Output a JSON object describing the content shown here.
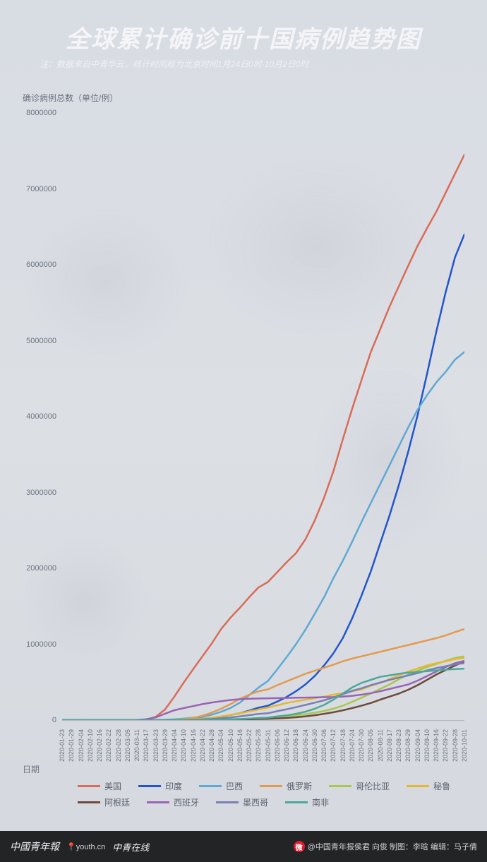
{
  "title": "全球累计确诊前十国病例趋势图",
  "subtitle": "注：数据来自中青华云，统计时间段为北京时间1月24日0时-10月2日0时",
  "ylabel": "确诊病例总数（单位/例）",
  "xlabel": "日期",
  "chart": {
    "type": "line",
    "ylim": [
      0,
      8000000
    ],
    "ytick_step": 1000000,
    "yticks": [
      "0",
      "1000000",
      "2000000",
      "3000000",
      "4000000",
      "5000000",
      "6000000",
      "7000000",
      "8000000"
    ],
    "xticks": [
      "2020-01-23",
      "2020-01-29",
      "2020-02-04",
      "2020-02-10",
      "2020-02-16",
      "2020-02-22",
      "2020-02-28",
      "2020-03-05",
      "2020-03-11",
      "2020-03-17",
      "2020-03-23",
      "2020-03-29",
      "2020-04-04",
      "2020-04-10",
      "2020-04-16",
      "2020-04-22",
      "2020-04-28",
      "2020-05-04",
      "2020-05-10",
      "2020-05-16",
      "2020-05-22",
      "2020-05-28",
      "2020-05-31",
      "2020-06-06",
      "2020-06-12",
      "2020-06-18",
      "2020-06-24",
      "2020-06-30",
      "2020-07-06",
      "2020-07-12",
      "2020-07-18",
      "2020-07-24",
      "2020-07-30",
      "2020-08-05",
      "2020-08-11",
      "2020-08-17",
      "2020-08-23",
      "2020-08-29",
      "2020-09-04",
      "2020-09-10",
      "2020-09-16",
      "2020-09-22",
      "2020-09-28",
      "2020-10-01"
    ],
    "line_width": 2.5,
    "background_color": "#d9dde3",
    "text_color": "#6b7280",
    "title_color": "#f5f5f7",
    "title_fontsize": 34,
    "series": [
      {
        "name": "美国",
        "color": "#d96b57",
        "values": [
          0,
          5,
          11,
          12,
          15,
          35,
          62,
          159,
          1100,
          6300,
          43500,
          140000,
          310000,
          495000,
          670000,
          840000,
          1010000,
          1200000,
          1350000,
          1480000,
          1620000,
          1750000,
          1820000,
          1950000,
          2080000,
          2200000,
          2380000,
          2630000,
          2930000,
          3280000,
          3700000,
          4100000,
          4480000,
          4850000,
          5150000,
          5450000,
          5720000,
          5990000,
          6250000,
          6480000,
          6700000,
          6950000,
          7200000,
          7450000
        ]
      },
      {
        "name": "印度",
        "color": "#2255cc",
        "values": [
          0,
          0,
          1,
          3,
          3,
          3,
          3,
          31,
          62,
          137,
          500,
          1000,
          3000,
          7500,
          13000,
          21000,
          31000,
          46000,
          67000,
          90000,
          125000,
          165000,
          190000,
          245000,
          305000,
          380000,
          470000,
          580000,
          720000,
          880000,
          1080000,
          1340000,
          1640000,
          1960000,
          2330000,
          2700000,
          3100000,
          3540000,
          4020000,
          4560000,
          5120000,
          5640000,
          6100000,
          6400000
        ]
      },
      {
        "name": "巴西",
        "color": "#5fa8d3",
        "values": [
          0,
          0,
          0,
          0,
          0,
          0,
          1,
          8,
          52,
          290,
          1900,
          4300,
          10300,
          20000,
          32000,
          46000,
          72000,
          110000,
          160000,
          230000,
          330000,
          430000,
          515000,
          670000,
          830000,
          1000000,
          1190000,
          1400000,
          1620000,
          1870000,
          2100000,
          2350000,
          2610000,
          2860000,
          3110000,
          3360000,
          3610000,
          3860000,
          4090000,
          4280000,
          4450000,
          4590000,
          4750000,
          4850000
        ]
      },
      {
        "name": "俄罗斯",
        "color": "#e39a4e",
        "values": [
          0,
          0,
          2,
          2,
          2,
          2,
          2,
          4,
          20,
          114,
          438,
          1800,
          4700,
          12000,
          28000,
          58000,
          99000,
          150000,
          210000,
          280000,
          335000,
          380000,
          405000,
          460000,
          510000,
          560000,
          610000,
          650000,
          690000,
          730000,
          775000,
          810000,
          840000,
          870000,
          900000,
          930000,
          960000,
          990000,
          1020000,
          1050000,
          1080000,
          1115000,
          1160000,
          1200000
        ]
      },
      {
        "name": "哥伦比亚",
        "color": "#a8c84e",
        "values": [
          0,
          0,
          0,
          0,
          0,
          0,
          0,
          0,
          0,
          57,
          235,
          700,
          1400,
          2500,
          3200,
          4300,
          5900,
          7900,
          11000,
          15000,
          19000,
          25000,
          29000,
          40000,
          48000,
          60000,
          77000,
          98000,
          120000,
          150000,
          190000,
          240000,
          295000,
          350000,
          410000,
          470000,
          540000,
          600000,
          650000,
          700000,
          740000,
          780000,
          820000,
          840000
        ]
      },
      {
        "name": "秘鲁",
        "color": "#e6b82e",
        "values": [
          0,
          0,
          0,
          0,
          0,
          0,
          0,
          0,
          15,
          117,
          395,
          950,
          1700,
          6800,
          12500,
          20000,
          31000,
          47000,
          68000,
          88000,
          115000,
          140000,
          165000,
          195000,
          225000,
          248000,
          268000,
          288000,
          310000,
          335000,
          355000,
          380000,
          405000,
          450000,
          490000,
          540000,
          590000,
          640000,
          680000,
          720000,
          750000,
          775000,
          805000,
          820000
        ]
      },
      {
        "name": "阿根廷",
        "color": "#6d4a3a",
        "values": [
          0,
          0,
          0,
          0,
          0,
          0,
          0,
          1,
          19,
          79,
          266,
          745,
          1300,
          1900,
          2600,
          3200,
          4000,
          4900,
          6000,
          7800,
          10000,
          14000,
          16800,
          22000,
          28000,
          37000,
          49000,
          64000,
          83000,
          103000,
          128000,
          158000,
          190000,
          225000,
          270000,
          310000,
          350000,
          400000,
          460000,
          530000,
          600000,
          660000,
          720000,
          770000
        ]
      },
      {
        "name": "西班牙",
        "color": "#9a63b5",
        "values": [
          0,
          0,
          0,
          1,
          2,
          2,
          33,
          260,
          2200,
          11800,
          35000,
          85000,
          130000,
          158000,
          184000,
          210000,
          232000,
          248000,
          265000,
          275000,
          282000,
          285000,
          287000,
          289000,
          292000,
          295000,
          297000,
          299000,
          302000,
          303000,
          310000,
          320000,
          335000,
          355000,
          380000,
          410000,
          440000,
          470000,
          520000,
          580000,
          640000,
          700000,
          750000,
          780000
        ]
      },
      {
        "name": "墨西哥",
        "color": "#7a7fb5",
        "values": [
          0,
          0,
          0,
          0,
          0,
          0,
          0,
          5,
          12,
          93,
          370,
          990,
          1900,
          3800,
          6300,
          10500,
          16700,
          24900,
          35000,
          49000,
          65000,
          81000,
          90000,
          117000,
          142000,
          170000,
          200000,
          230000,
          260000,
          300000,
          340000,
          385000,
          420000,
          460000,
          495000,
          530000,
          560000,
          590000,
          620000,
          655000,
          685000,
          710000,
          735000,
          750000
        ]
      },
      {
        "name": "南非",
        "color": "#4ba89a",
        "values": [
          0,
          0,
          0,
          0,
          0,
          0,
          0,
          0,
          7,
          85,
          402,
          1300,
          1600,
          2000,
          2700,
          3600,
          4800,
          7200,
          10000,
          14000,
          20000,
          27000,
          33000,
          48000,
          62000,
          83000,
          111000,
          150000,
          200000,
          270000,
          350000,
          430000,
          490000,
          530000,
          570000,
          590000,
          610000,
          625000,
          635000,
          645000,
          655000,
          665000,
          672000,
          678000
        ]
      }
    ]
  },
  "footer": {
    "brand1": "中國青年報",
    "brand2": "youth.cn",
    "brand3": "中青在线",
    "weibo": "@中国青年报侯君 向俊 制图：李晗 编辑：马子倩"
  }
}
